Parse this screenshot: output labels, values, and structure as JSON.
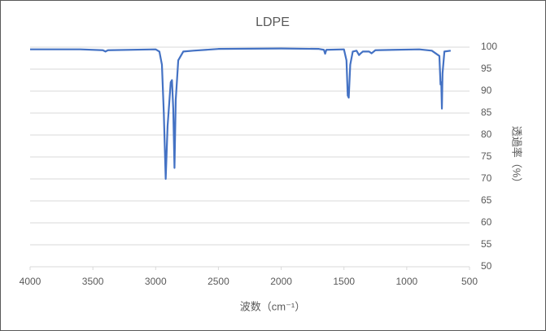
{
  "chart_data": {
    "type": "line",
    "title": "LDPE",
    "x_label": "波数（cm⁻¹）",
    "y_label": "透過率（%）",
    "x": [
      4000,
      3600,
      3420,
      3400,
      3380,
      3000,
      2970,
      2950,
      2935,
      2920,
      2905,
      2880,
      2870,
      2860,
      2850,
      2840,
      2820,
      2780,
      2700,
      2500,
      2000,
      1700,
      1660,
      1650,
      1640,
      1500,
      1480,
      1470,
      1462,
      1450,
      1430,
      1400,
      1380,
      1370,
      1350,
      1300,
      1280,
      1250,
      1100,
      900,
      800,
      740,
      731,
      725,
      720,
      715,
      700,
      650
    ],
    "values": [
      99.5,
      99.5,
      99.3,
      99.0,
      99.3,
      99.5,
      99,
      96,
      85,
      70,
      82,
      92,
      92.5,
      86,
      72.5,
      88,
      97,
      99,
      99.2,
      99.6,
      99.7,
      99.6,
      99.4,
      98.5,
      99.4,
      99.5,
      97,
      89,
      88.5,
      96,
      99,
      99.2,
      98.2,
      98.5,
      99,
      99,
      98.6,
      99.3,
      99.4,
      99.5,
      99.2,
      98,
      91.5,
      92,
      86,
      94,
      99,
      99.2
    ],
    "color": "#4472c4",
    "xlim": [
      4000,
      500
    ],
    "xticks": [
      4000,
      3500,
      3000,
      2500,
      2000,
      1500,
      1000,
      500
    ],
    "ylim": [
      50,
      100
    ],
    "yticks": [
      50,
      55,
      60,
      65,
      70,
      75,
      80,
      85,
      90,
      95,
      100
    ],
    "grid": true
  }
}
